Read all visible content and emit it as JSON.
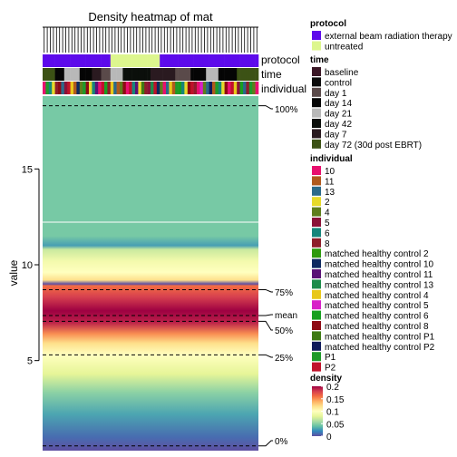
{
  "chart_data": {
    "type": "heatmap",
    "title": "Density heatmap of mat",
    "ylabel": "value",
    "ylim": [
      0.3,
      18.8
    ],
    "y_ticks": [
      5,
      10,
      15
    ],
    "quantile_lines": [
      {
        "label": "100%",
        "value": 18.3
      },
      {
        "label": "75%",
        "value": 8.7
      },
      {
        "label": "mean",
        "value": 7.35
      },
      {
        "label": "50%",
        "value": 7.05
      },
      {
        "label": "25%",
        "value": 5.3
      },
      {
        "label": "0%",
        "value": 0.55
      }
    ],
    "n_columns": 70,
    "protocol_track": [
      "external beam radiation therapy",
      "external beam radiation therapy",
      "external beam radiation therapy",
      "external beam radiation therapy",
      "external beam radiation therapy",
      "external beam radiation therapy",
      "external beam radiation therapy",
      "external beam radiation therapy",
      "external beam radiation therapy",
      "external beam radiation therapy",
      "external beam radiation therapy",
      "external beam radiation therapy",
      "external beam radiation therapy",
      "external beam radiation therapy",
      "external beam radiation therapy",
      "external beam radiation therapy",
      "external beam radiation therapy",
      "external beam radiation therapy",
      "external beam radiation therapy",
      "external beam radiation therapy",
      "external beam radiation therapy",
      "external beam radiation therapy",
      "untreated",
      "untreated",
      "untreated",
      "untreated",
      "untreated",
      "untreated",
      "untreated",
      "untreated",
      "untreated",
      "untreated",
      "untreated",
      "untreated",
      "untreated",
      "untreated",
      "untreated",
      "untreated",
      "external beam radiation therapy",
      "external beam radiation therapy",
      "external beam radiation therapy",
      "external beam radiation therapy",
      "external beam radiation therapy",
      "external beam radiation therapy",
      "external beam radiation therapy",
      "external beam radiation therapy",
      "external beam radiation therapy",
      "external beam radiation therapy",
      "external beam radiation therapy",
      "external beam radiation therapy",
      "external beam radiation therapy",
      "external beam radiation therapy",
      "external beam radiation therapy",
      "external beam radiation therapy",
      "external beam radiation therapy",
      "external beam radiation therapy",
      "external beam radiation therapy",
      "external beam radiation therapy",
      "external beam radiation therapy",
      "external beam radiation therapy",
      "external beam radiation therapy",
      "external beam radiation therapy",
      "external beam radiation therapy",
      "external beam radiation therapy",
      "external beam radiation therapy",
      "external beam radiation therapy",
      "external beam radiation therapy",
      "external beam radiation therapy",
      "external beam radiation therapy",
      "external beam radiation therapy"
    ],
    "time_track": [
      "day 72 (30d post EBRT)",
      "day 72 (30d post EBRT)",
      "day 72 (30d post EBRT)",
      "day 72 (30d post EBRT)",
      "day 14",
      "day 14",
      "day 14",
      "day 21",
      "day 21",
      "day 21",
      "day 21",
      "day 21",
      "day 14",
      "day 14",
      "day 14",
      "day 14",
      "day 7",
      "day 7",
      "day 7",
      "day 1",
      "day 1",
      "day 1",
      "day 21",
      "day 21",
      "day 21",
      "day 21",
      "day 42",
      "day 42",
      "day 42",
      "day 42",
      "day 42",
      "day 42",
      "day 42",
      "day 42",
      "day 42",
      "day 7",
      "day 7",
      "day 7",
      "day 7",
      "day 7",
      "day 7",
      "day 7",
      "day 7",
      "day 1",
      "day 1",
      "day 1",
      "day 1",
      "day 1",
      "day 14",
      "day 14",
      "day 14",
      "day 14",
      "day 14",
      "day 21",
      "day 21",
      "day 21",
      "day 21",
      "day 14",
      "day 14",
      "day 14",
      "day 14",
      "day 14",
      "day 14",
      "day 72 (30d post EBRT)",
      "day 72 (30d post EBRT)",
      "day 72 (30d post EBRT)",
      "day 72 (30d post EBRT)",
      "day 72 (30d post EBRT)",
      "day 72 (30d post EBRT)",
      "day 72 (30d post EBRT)"
    ],
    "individual_track": [
      "10",
      "P1",
      "6",
      "2",
      "8",
      "matched healthy control 8",
      "13",
      "5",
      "P2",
      "matched healthy control 4",
      "11",
      "matched healthy control 10",
      "4",
      "P1",
      "matched healthy control 8",
      "2",
      "6",
      "matched healthy control 11",
      "10",
      "P2",
      "matched healthy control 6",
      "8",
      "matched healthy control 4",
      "13",
      "11",
      "4",
      "matched healthy control 8",
      "10",
      "P2",
      "6",
      "matched healthy control 11",
      "2",
      "matched healthy control P1",
      "8",
      "5",
      "matched healthy control 13",
      "P2",
      "matched healthy control 10",
      "4",
      "10",
      "13",
      "matched healthy control 4",
      "11",
      "P1",
      "matched healthy control 6",
      "6",
      "2",
      "matched healthy control 8",
      "P2",
      "8",
      "10",
      "matched healthy control 5",
      "4",
      "13",
      "matched healthy control P2",
      "11",
      "P1",
      "6",
      "2",
      "matched healthy control 8",
      "10",
      "P2",
      "matched healthy control 4",
      "5",
      "matched healthy control 6",
      "13",
      "8",
      "P1",
      "4",
      "10"
    ],
    "density_gradient": [
      {
        "value": 0.3,
        "density": 0.0
      },
      {
        "value": 9.0,
        "density": 0.0
      },
      {
        "value": 11.0,
        "density": 0.028
      },
      {
        "value": 11.5,
        "density": 0.045
      },
      {
        "value": 10.8,
        "density": 0.07
      },
      {
        "value": 10.2,
        "density": 0.09
      },
      {
        "value": 9.6,
        "density": 0.1
      },
      {
        "value": 9.2,
        "density": 0.12
      },
      {
        "value": 8.9,
        "density": 0.16
      },
      {
        "value": 8.3,
        "density": 0.18
      },
      {
        "value": 7.6,
        "density": 0.2
      },
      {
        "value": 7.0,
        "density": 0.19
      },
      {
        "value": 6.4,
        "density": 0.15
      },
      {
        "value": 5.9,
        "density": 0.12
      },
      {
        "value": 5.3,
        "density": 0.1
      },
      {
        "value": 4.3,
        "density": 0.08
      },
      {
        "value": 3.3,
        "density": 0.05
      },
      {
        "value": 2.2,
        "density": 0.03
      },
      {
        "value": 1.0,
        "density": 0.01
      }
    ],
    "legend": {
      "protocol": {
        "title": "protocol",
        "items": [
          {
            "label": "external beam radiation therapy",
            "color": "#5D0AEB"
          },
          {
            "label": "untreated",
            "color": "#DDF68E"
          }
        ]
      },
      "time": {
        "title": "time",
        "items": [
          {
            "label": "baseline",
            "color": "#3A1726"
          },
          {
            "label": "control",
            "color": "#0C0C0C"
          },
          {
            "label": "day 1",
            "color": "#5A4A4A"
          },
          {
            "label": "day 14",
            "color": "#050505"
          },
          {
            "label": "day 21",
            "color": "#B8B8B8"
          },
          {
            "label": "day 42",
            "color": "#0B0F0B"
          },
          {
            "label": "day 7",
            "color": "#2A1A20"
          },
          {
            "label": "day 72 (30d post EBRT)",
            "color": "#3C5215"
          }
        ]
      },
      "individual": {
        "title": "individual",
        "items": [
          {
            "label": "10",
            "color": "#E8106F"
          },
          {
            "label": "11",
            "color": "#B05A1E"
          },
          {
            "label": "13",
            "color": "#2B6A8A"
          },
          {
            "label": "2",
            "color": "#E6DA2A"
          },
          {
            "label": "4",
            "color": "#5E7E1C"
          },
          {
            "label": "5",
            "color": "#8A1238"
          },
          {
            "label": "6",
            "color": "#16857B"
          },
          {
            "label": "8",
            "color": "#8E1E2A"
          },
          {
            "label": "matched healthy control  2",
            "color": "#2E9A0E"
          },
          {
            "label": "matched healthy control 10",
            "color": "#0E2A60"
          },
          {
            "label": "matched healthy control 11",
            "color": "#5A1276"
          },
          {
            "label": "matched healthy control 13",
            "color": "#1E8C4A"
          },
          {
            "label": "matched healthy control 4",
            "color": "#E8C81A"
          },
          {
            "label": "matched healthy control 5",
            "color": "#D820C8"
          },
          {
            "label": "matched healthy control 6",
            "color": "#18A020"
          },
          {
            "label": "matched healthy control 8",
            "color": "#8E0A14"
          },
          {
            "label": "matched healthy control P1",
            "color": "#3E7A14"
          },
          {
            "label": "matched healthy control P2",
            "color": "#0E1A5A"
          },
          {
            "label": "P1",
            "color": "#1E9A2A"
          },
          {
            "label": "P2",
            "color": "#C0122A"
          }
        ]
      },
      "density": {
        "title": "density",
        "ticks": [
          "0.2",
          "0.15",
          "0.1",
          "0.05",
          "0"
        ],
        "tick_values": [
          0.2,
          0.15,
          0.1,
          0.05,
          0
        ]
      }
    },
    "annotation_names": [
      "protocol",
      "time",
      "individual"
    ]
  },
  "palette": [
    "#5E4FA2",
    "#3288BD",
    "#66C2A5",
    "#ABDDA4",
    "#E6F598",
    "#FFFFBF",
    "#FEE08B",
    "#FDAE61",
    "#F46D43",
    "#D53E4F",
    "#9E0142"
  ]
}
